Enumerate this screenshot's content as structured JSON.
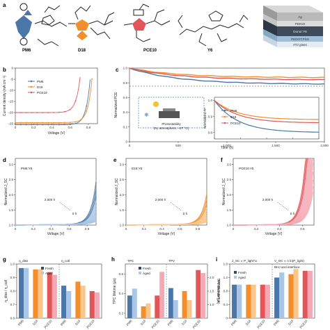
{
  "colors": {
    "pm6": "#4a76a8",
    "d18": "#f28e2b",
    "pce10": "#e15759",
    "pm6_light": "#a9c6e6",
    "d18_light": "#f9c68c",
    "pce10_light": "#f5a9b4"
  },
  "panel_a": {
    "label": "a",
    "molecules": [
      "PM6",
      "D18",
      "PCE10",
      "Y6"
    ],
    "device_layers": [
      "Ag",
      "PDINO",
      "Donor:Y6",
      "PEDOT:PSS",
      "ITO glass"
    ]
  },
  "chart_data": [
    {
      "panel": "b",
      "type": "line",
      "xlabel": "Voltage (V)",
      "ylabel": "Current density (mA cm⁻²)",
      "xlim": [
        0,
        0.9
      ],
      "ylim": [
        -25,
        0
      ],
      "xticks": [
        "0",
        "0.2",
        "0.4",
        "0.6",
        "0.8"
      ],
      "yticks": [
        "-25",
        "-20",
        "-15",
        "-10",
        "-5",
        "0"
      ],
      "series": [
        {
          "name": "PM6",
          "jsc": -25.5,
          "voc": 0.83
        },
        {
          "name": "D18",
          "jsc": -24.5,
          "voc": 0.85
        },
        {
          "name": "PCE10",
          "jsc": -20.0,
          "voc": 0.72
        }
      ]
    },
    {
      "panel": "c",
      "type": "line",
      "xlabel": "Time (h)",
      "ylabel": "Normalized PCE",
      "xlim": [
        0,
        2000
      ],
      "ylim": [
        0,
        1.0
      ],
      "xticks": [
        "0",
        "500",
        "1,000",
        "1,500",
        "2,000"
      ],
      "yticks": [
        "0",
        "0.2",
        "0.4",
        "0.6",
        "0.8",
        "1.0"
      ],
      "annotation": "Photostability",
      "annotation2": "(N₂ atmosphere, ~27 °C)",
      "inset": {
        "ylabel": "Normalized FF",
        "yticks": [
          "0.8",
          "0.9",
          "1.0"
        ],
        "xticks": [
          "0",
          "500",
          "1,000",
          "1,500",
          "2,000"
        ]
      },
      "series": [
        {
          "name": "PM6",
          "end": 0.78
        },
        {
          "name": "D18",
          "end": 0.87
        },
        {
          "name": "PCE10",
          "end": 0.84
        }
      ]
    },
    {
      "panel": "d",
      "label": "PM6:Y6",
      "xlabel": "Voltage (V)",
      "ylabel": "Normalized J_SC",
      "xticks": [
        "0",
        "0.2",
        "0.4",
        "0.6",
        "0.8"
      ],
      "yticks": [
        "1.0",
        "1.5",
        "2.0",
        "2.5",
        "3.0"
      ],
      "arrow_start": "2,000 h",
      "arrow_end": "0 h"
    },
    {
      "panel": "e",
      "label": "D18:Y6",
      "xlabel": "Voltage (V)",
      "ylabel": "Normalized J_SC",
      "xticks": [
        "0",
        "0.2",
        "0.4",
        "0.6",
        "0.8"
      ],
      "yticks": [
        "1.0",
        "1.5",
        "2.0",
        "2.5",
        "3.0"
      ],
      "arrow_start": "2,000 h",
      "arrow_end": "0 h"
    },
    {
      "panel": "f",
      "label": "PCE10:Y6",
      "xlabel": "Voltage (V)",
      "ylabel": "Normalized J_SC",
      "xticks": [
        "0",
        "0.2",
        "0.4",
        "0.6"
      ],
      "yticks": [
        "1.0",
        "1.5",
        "2.0",
        "2.5",
        "3.0"
      ],
      "arrow_start": "2,000 h",
      "arrow_end": "0 h"
    },
    {
      "panel": "g",
      "type": "bar",
      "ylabel": "η_diss / η_coll",
      "ylim": [
        0.6,
        1.0
      ],
      "yticks": [
        "0.6",
        "0.7",
        "0.8",
        "0.9",
        "1.0"
      ],
      "groups": [
        "η_diss",
        "η_coll"
      ],
      "categories": [
        "PM6",
        "D18",
        "PCE10"
      ],
      "legend": [
        "Fresh",
        "Aged"
      ],
      "fresh": [
        0.97,
        0.96,
        0.94,
        0.84,
        0.87,
        0.8
      ],
      "aged": [
        0.97,
        0.96,
        0.92,
        0.8,
        0.84,
        0.79
      ]
    },
    {
      "panel": "h",
      "type": "bar",
      "ylabel": "TPC lifetime (μs)",
      "ylabel2": "TPV lifetime (μs)",
      "groups": [
        "TPC",
        "TPV"
      ],
      "categories": [
        "PM6",
        "D18",
        "PCE10"
      ],
      "legend": [
        "Fresh",
        "Aged"
      ],
      "yticks": [
        "0.2",
        "0.4",
        "0.6"
      ],
      "yticks2": [
        "1.0",
        "1.5",
        "2.0"
      ],
      "fresh": [
        0.38,
        0.27,
        0.38,
        1.6,
        1.5,
        2.2
      ],
      "aged": [
        0.45,
        0.3,
        0.62,
        1.2,
        1.2,
        2.1
      ]
    },
    {
      "panel": "i",
      "type": "bar",
      "ylabel": "α and n values",
      "ylim": [
        0,
        1.6
      ],
      "yticks": [
        "0",
        "0.4",
        "0.8",
        "1.2",
        "1.6"
      ],
      "groups": [
        "J_SC ∝ P_light^α",
        "V_OC ∝ n ln(P_light)"
      ],
      "group_note": "BHJ and interface",
      "categories": [
        "PM6",
        "D18",
        "PCE10"
      ],
      "legend": [
        "Fresh",
        "Aged"
      ],
      "fresh": [
        0.99,
        0.99,
        0.99,
        1.2,
        1.3,
        1.4
      ],
      "aged": [
        0.99,
        0.99,
        0.99,
        1.35,
        1.45,
        1.4
      ]
    }
  ]
}
